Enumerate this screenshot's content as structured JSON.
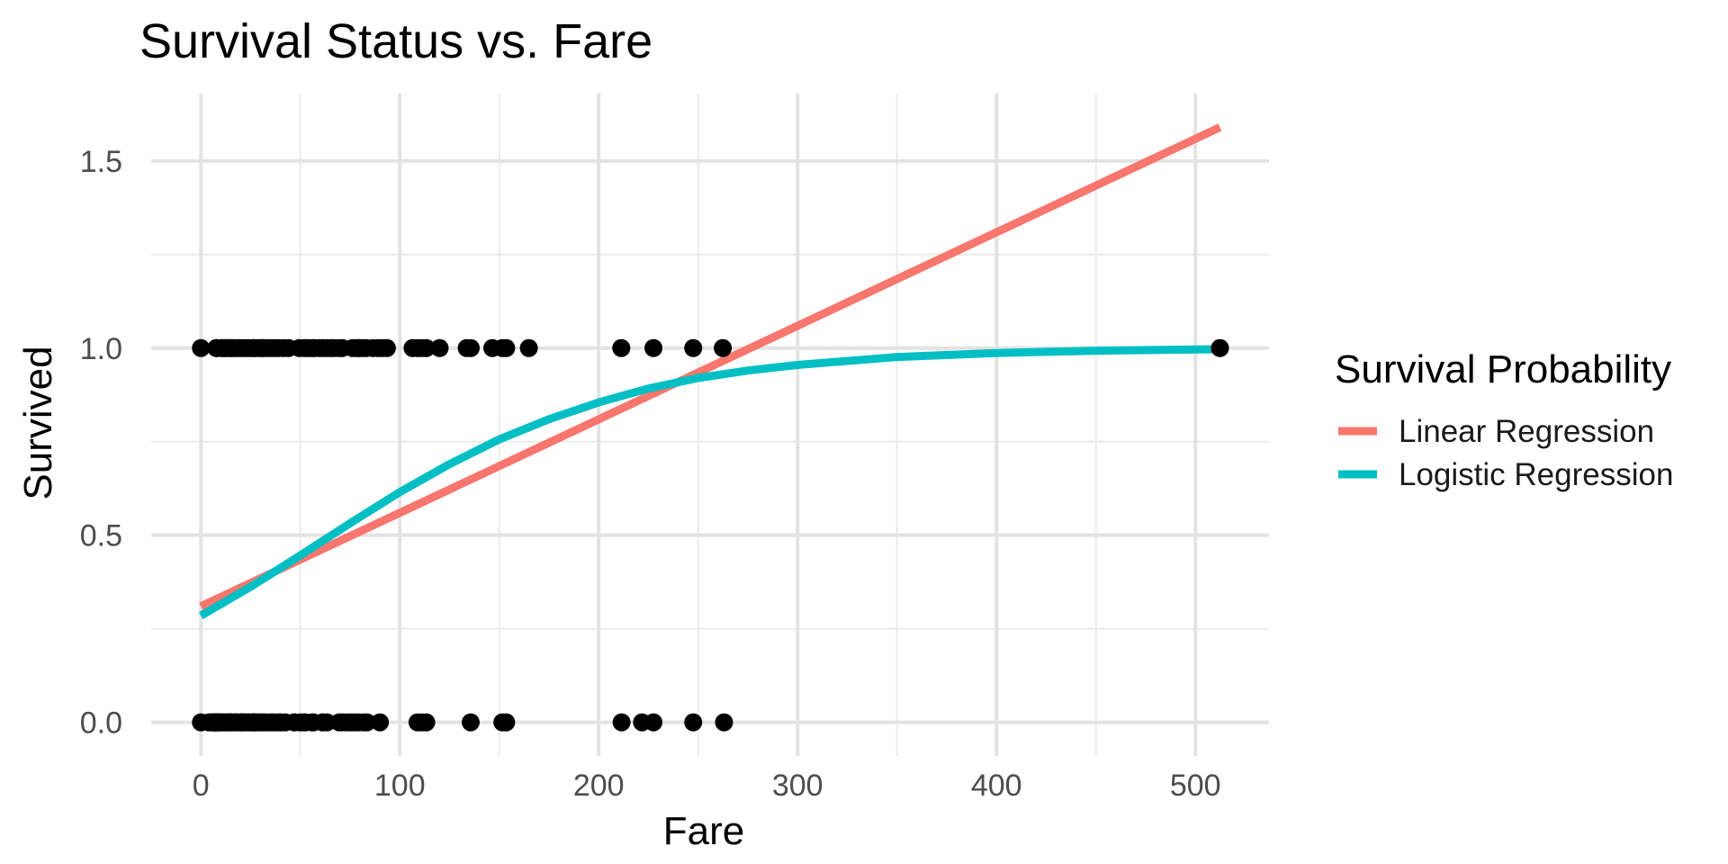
{
  "chart_data": {
    "type": "scatter",
    "title": "Survival Status vs. Fare",
    "xlabel": "Fare",
    "ylabel": "Survived",
    "xlim": [
      -25,
      537
    ],
    "ylim": [
      -0.09,
      1.68
    ],
    "x_ticks": [
      0,
      100,
      200,
      300,
      400,
      500
    ],
    "x_tick_labels": [
      "0",
      "100",
      "200",
      "300",
      "400",
      "500"
    ],
    "y_ticks": [
      0.0,
      0.5,
      1.0,
      1.5
    ],
    "y_tick_labels": [
      "0.0",
      "0.5",
      "1.0",
      "1.5"
    ],
    "grid": true,
    "legend": {
      "title": "Survival Probability",
      "position": "right",
      "entries": [
        "Linear Regression",
        "Logistic Regression"
      ]
    },
    "colors": {
      "points": "#000000",
      "linear": "#F8766D",
      "logistic": "#00BFC4"
    },
    "points_survived_1": [
      0,
      7.75,
      8.05,
      10.5,
      11.13,
      12.35,
      13,
      14.45,
      15.5,
      16.1,
      17.8,
      19.5,
      21,
      22.36,
      24.15,
      26,
      26.55,
      27.72,
      29.7,
      30.5,
      31.39,
      33.5,
      35.5,
      37,
      39,
      41.58,
      44,
      49.5,
      52,
      53.1,
      55,
      56.5,
      57,
      59.4,
      61.18,
      63.36,
      65,
      66.6,
      69.3,
      71,
      76.29,
      78.27,
      79.2,
      80,
      81.86,
      83.16,
      86.5,
      89.1,
      91.08,
      93.5,
      106.43,
      108.9,
      110.88,
      113.28,
      120,
      133.65,
      135.63,
      146.52,
      151.55,
      153.46,
      164.87,
      211.34,
      227.53,
      247.52,
      262.38,
      512.33
    ],
    "points_survived_0": [
      0,
      4.01,
      5,
      6.24,
      6.45,
      6.5,
      7,
      7.05,
      7.23,
      7.25,
      7.55,
      7.73,
      7.78,
      7.85,
      7.9,
      8.05,
      8.66,
      9,
      9.5,
      10.17,
      10.5,
      11.24,
      12.28,
      13,
      13.5,
      14.45,
      14.5,
      15.05,
      15.55,
      16.7,
      17.8,
      18,
      19.97,
      20.21,
      20.53,
      21.08,
      22.03,
      23.25,
      24.15,
      25.47,
      26,
      26.55,
      27,
      27.9,
      29.13,
      30,
      31.27,
      32.5,
      34.38,
      35.5,
      36.75,
      38.5,
      39.69,
      40.13,
      42.4,
      46.9,
      47.1,
      50,
      51.86,
      52.55,
      55.9,
      56.5,
      61.18,
      61.38,
      63.36,
      69.55,
      71,
      73.5,
      75.25,
      77.29,
      79.2,
      81.86,
      83.48,
      90,
      108.9,
      110.88,
      113.28,
      135.63,
      151.55,
      153.46,
      211.5,
      221.78,
      227.53,
      247.52,
      263
    ],
    "linear_regression": {
      "x": [
        0,
        512.33
      ],
      "y": [
        0.31,
        1.59
      ]
    },
    "logistic_regression": {
      "x": [
        0,
        25,
        50,
        75,
        100,
        125,
        150,
        175,
        200,
        225,
        250,
        275,
        300,
        350,
        400,
        450,
        512.33
      ],
      "y": [
        0.285,
        0.362,
        0.446,
        0.532,
        0.615,
        0.69,
        0.756,
        0.81,
        0.855,
        0.892,
        0.92,
        0.94,
        0.955,
        0.976,
        0.987,
        0.993,
        0.997
      ]
    }
  }
}
